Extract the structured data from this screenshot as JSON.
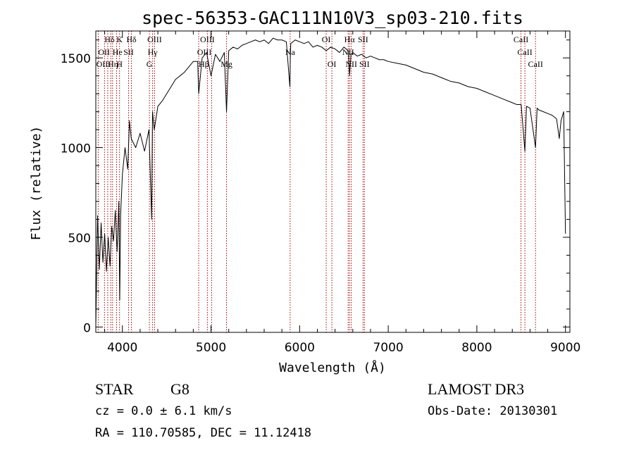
{
  "chart_data": {
    "type": "line",
    "title": "spec-56353-GAC111N10V3_sp03-210.fits",
    "xlabel": "Wavelength (Å)",
    "ylabel": "Flux (relative)",
    "xlim": [
      3700,
      9050
    ],
    "ylim": [
      -30,
      1650
    ],
    "x_ticks": [
      4000,
      5000,
      6000,
      7000,
      8000,
      9000
    ],
    "x_tick_labels": [
      "4000",
      "5000",
      "6000",
      "7000",
      "8000",
      "9000"
    ],
    "y_ticks": [
      0,
      500,
      1000,
      1500
    ],
    "y_tick_labels": [
      "0",
      "500",
      "1000",
      "1500"
    ],
    "grid": false,
    "legend": "none",
    "line_color": "#000000",
    "marker_color": "#a00000",
    "series": [
      {
        "x": [
          3700,
          3720,
          3740,
          3760,
          3780,
          3800,
          3820,
          3840,
          3860,
          3880,
          3900,
          3920,
          3940,
          3960,
          3970,
          3980,
          4000,
          4030,
          4060,
          4080,
          4100,
          4150,
          4200,
          4250,
          4300,
          4330,
          4340,
          4360,
          4400,
          4450,
          4500,
          4550,
          4600,
          4650,
          4700,
          4750,
          4800,
          4850,
          4861,
          4900,
          4950,
          5000,
          5050,
          5100,
          5150,
          5175,
          5200,
          5250,
          5300,
          5350,
          5400,
          5450,
          5500,
          5550,
          5600,
          5650,
          5700,
          5750,
          5800,
          5850,
          5890,
          5895,
          5900,
          5950,
          6000,
          6050,
          6100,
          6150,
          6200,
          6250,
          6300,
          6350,
          6400,
          6450,
          6500,
          6550,
          6563,
          6580,
          6600,
          6650,
          6700,
          6750,
          6800,
          6850,
          6900,
          6950,
          7000,
          7100,
          7200,
          7300,
          7400,
          7500,
          7600,
          7700,
          7800,
          7900,
          8000,
          8100,
          8200,
          8300,
          8400,
          8450,
          8500,
          8542,
          8560,
          8600,
          8662,
          8680,
          8700,
          8750,
          8800,
          8850,
          8900,
          8930,
          8950,
          8980,
          9000
        ],
        "y": [
          0,
          620,
          320,
          580,
          360,
          520,
          310,
          500,
          340,
          560,
          480,
          650,
          420,
          700,
          150,
          620,
          850,
          1000,
          880,
          1150,
          1050,
          1000,
          1080,
          980,
          1100,
          600,
          1200,
          1100,
          1230,
          1260,
          1300,
          1340,
          1380,
          1400,
          1420,
          1450,
          1480,
          1480,
          1300,
          1500,
          1530,
          1400,
          1520,
          1480,
          1530,
          1200,
          1540,
          1560,
          1550,
          1570,
          1580,
          1590,
          1600,
          1590,
          1600,
          1580,
          1610,
          1600,
          1600,
          1590,
          1340,
          1500,
          1580,
          1600,
          1590,
          1580,
          1590,
          1560,
          1570,
          1560,
          1540,
          1560,
          1550,
          1530,
          1560,
          1540,
          1400,
          1520,
          1530,
          1510,
          1520,
          1500,
          1510,
          1500,
          1490,
          1490,
          1480,
          1470,
          1460,
          1440,
          1420,
          1410,
          1390,
          1370,
          1360,
          1340,
          1330,
          1310,
          1290,
          1270,
          1250,
          1240,
          1240,
          980,
          1230,
          1220,
          1000,
          1220,
          1210,
          1200,
          1190,
          1180,
          1160,
          1050,
          1150,
          1200,
          520
        ]
      }
    ],
    "line_markers": [
      {
        "label": "Hδ",
        "x": 3798,
        "row": 0,
        "align": "start"
      },
      {
        "label": "OII",
        "x": 3727,
        "row": 1,
        "align": "start"
      },
      {
        "label": "OIII",
        "x": 3869,
        "row": 2,
        "align": "end"
      },
      {
        "label": "He",
        "x": 3889,
        "row": 1,
        "align": "start"
      },
      {
        "label": "Hη",
        "x": 3835,
        "row": 2,
        "align": "start"
      },
      {
        "label": "K",
        "x": 3934,
        "row": 0,
        "align": "start"
      },
      {
        "label": "H",
        "x": 3968,
        "row": 2,
        "align": "middle"
      },
      {
        "label": "SII",
        "x": 4070,
        "row": 1,
        "align": "middle"
      },
      {
        "label": "Hδ",
        "x": 4102,
        "row": 0,
        "align": "middle"
      },
      {
        "label": "OIII",
        "x": 4363,
        "row": 0,
        "align": "middle"
      },
      {
        "label": "Hγ",
        "x": 4341,
        "row": 1,
        "align": "middle"
      },
      {
        "label": "G",
        "x": 4305,
        "row": 2,
        "align": "middle"
      },
      {
        "label": "OIII",
        "x": 4959,
        "row": 0,
        "align": "middle"
      },
      {
        "label": "OIII",
        "x": 5007,
        "row": 1,
        "align": "end"
      },
      {
        "label": "Hβ",
        "x": 4861,
        "row": 2,
        "align": "start"
      },
      {
        "label": "Mg",
        "x": 5175,
        "row": 2,
        "align": "middle"
      },
      {
        "label": "Na",
        "x": 5893,
        "row": 1,
        "align": "middle"
      },
      {
        "label": "OI",
        "x": 6300,
        "row": 0,
        "align": "middle"
      },
      {
        "label": "OI",
        "x": 6364,
        "row": 2,
        "align": "middle"
      },
      {
        "label": "Hα",
        "x": 6563,
        "row": 0,
        "align": "middle"
      },
      {
        "label": "NII",
        "x": 6548,
        "row": 1,
        "align": "middle"
      },
      {
        "label": "NII",
        "x": 6583,
        "row": 2,
        "align": "middle"
      },
      {
        "label": "SII",
        "x": 6716,
        "row": 0,
        "align": "middle"
      },
      {
        "label": "SII",
        "x": 6731,
        "row": 2,
        "align": "middle"
      },
      {
        "label": "CaII",
        "x": 8498,
        "row": 0,
        "align": "middle"
      },
      {
        "label": "CaII",
        "x": 8542,
        "row": 1,
        "align": "middle"
      },
      {
        "label": "CaII",
        "x": 8662,
        "row": 2,
        "align": "middle"
      }
    ]
  },
  "info": {
    "class": "STAR",
    "subclass": "G8",
    "survey": "LAMOST DR3",
    "redshift": "cz = 0.0 ± 6.1 km/s",
    "obs_date": "Obs-Date: 20130301",
    "coords": "RA = 110.70585, DEC =  11.12418"
  }
}
